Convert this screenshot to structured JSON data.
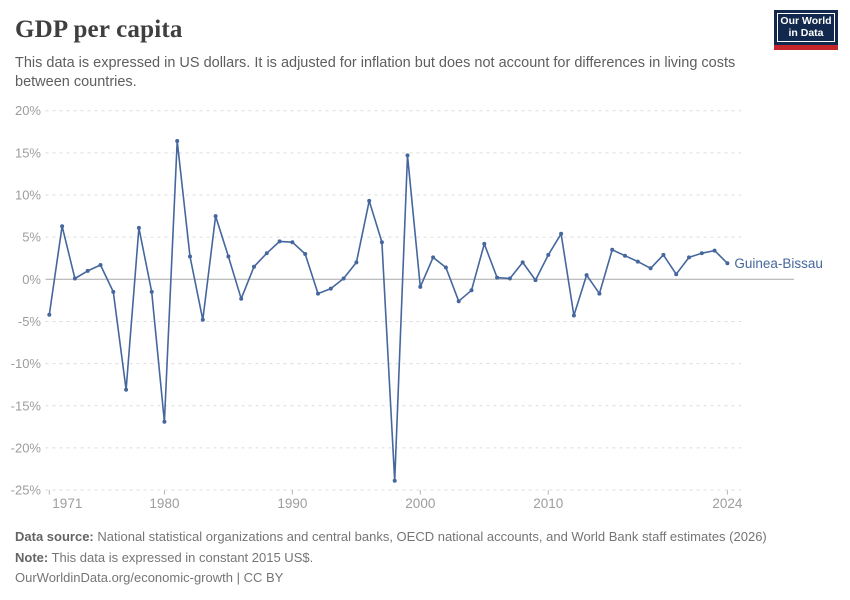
{
  "header": {
    "title": "GDP per capita",
    "subtitle": "This data is expressed in US dollars. It is adjusted for inflation but does not account for differences in living costs between countries.",
    "logo": {
      "line1": "Our World",
      "line2": "in Data",
      "navy_color": "#12294d",
      "red_color": "#c5262c"
    }
  },
  "chart_data": {
    "type": "line",
    "title": "GDP per capita",
    "x": [
      1971,
      1972,
      1973,
      1974,
      1975,
      1976,
      1977,
      1978,
      1979,
      1980,
      1981,
      1982,
      1983,
      1984,
      1985,
      1986,
      1987,
      1988,
      1989,
      1990,
      1991,
      1992,
      1993,
      1994,
      1995,
      1996,
      1997,
      1998,
      1999,
      2000,
      2001,
      2002,
      2003,
      2004,
      2005,
      2006,
      2007,
      2008,
      2009,
      2010,
      2011,
      2012,
      2013,
      2014,
      2015,
      2016,
      2017,
      2018,
      2019,
      2020,
      2021,
      2022,
      2023,
      2024
    ],
    "series": [
      {
        "name": "Guinea-Bissau",
        "color": "#45679d",
        "values": [
          -4.2,
          6.3,
          0.1,
          1.0,
          1.7,
          -1.5,
          -13.1,
          6.1,
          -1.5,
          -16.9,
          16.4,
          2.7,
          -4.8,
          7.5,
          2.7,
          -2.3,
          1.5,
          3.1,
          4.5,
          4.4,
          3.0,
          -1.7,
          -1.1,
          0.1,
          2.0,
          9.3,
          4.4,
          -23.9,
          14.7,
          -0.9,
          2.6,
          1.4,
          -2.6,
          -1.3,
          4.2,
          0.2,
          0.1,
          2.0,
          -0.1,
          2.9,
          5.4,
          -4.3,
          0.5,
          -1.7,
          3.5,
          2.8,
          2.1,
          1.3,
          2.9,
          0.6,
          2.6,
          3.1,
          3.4,
          1.9
        ]
      }
    ],
    "xlabel": "",
    "ylabel": "",
    "ylim": [
      -25,
      20
    ],
    "yticks": [
      20,
      15,
      10,
      5,
      0,
      -5,
      -10,
      -15,
      -20,
      -25
    ],
    "ytick_labels": [
      "20%",
      "15%",
      "10%",
      "5%",
      "0%",
      "-5%",
      "-10%",
      "-15%",
      "-20%",
      "-25%"
    ],
    "xticks": [
      1971,
      1980,
      1990,
      2000,
      2010,
      2024
    ],
    "xtick_labels": [
      "1971",
      "1980",
      "1990",
      "2000",
      "2010",
      "2024"
    ],
    "grid": "horizontal dashed",
    "zero_line": true,
    "legend_position": "end-of-line",
    "colors": {
      "grid": "#dcdcdc",
      "zero_line": "#a9a9a9",
      "axis_tick": "#b5b5b5",
      "tick_label": "#9d9d9d"
    }
  },
  "footer": {
    "source_label": "Data source:",
    "source_text": "National statistical organizations and central banks, OECD national accounts, and World Bank staff estimates (2026)",
    "note_label": "Note:",
    "note_text": "This data is expressed in constant 2015 US$.",
    "citation_link": "OurWorldinData.org/economic-growth",
    "citation_suffix": " | CC BY"
  }
}
